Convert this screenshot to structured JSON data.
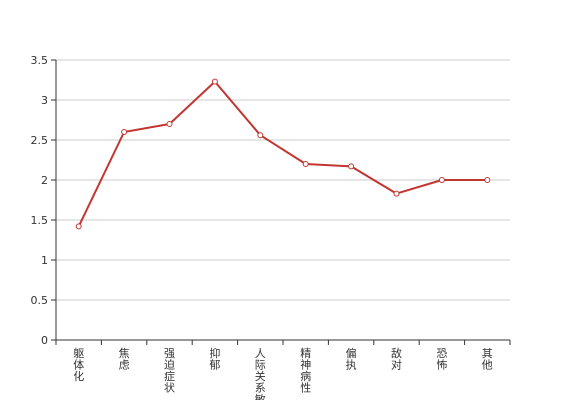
{
  "chart_data": {
    "type": "line",
    "categories": [
      "躯体化",
      "焦虑",
      "强迫症状",
      "抑郁",
      "人际关系敏感",
      "精神病性",
      "偏执",
      "敌对",
      "恐怖",
      "其他"
    ],
    "series": [
      {
        "values": [
          1.42,
          2.6,
          2.7,
          3.23,
          2.56,
          2.2,
          2.17,
          1.83,
          2.0,
          2.0
        ]
      }
    ],
    "yticks": [
      "0",
      "0.5",
      "1",
      "1.5",
      "2",
      "2.5",
      "3",
      "3.5"
    ],
    "ylim": [
      0,
      3.5
    ],
    "grid": true,
    "colors": {
      "line": "#c23531",
      "grid": "#cccccc",
      "axis": "#333333"
    }
  }
}
